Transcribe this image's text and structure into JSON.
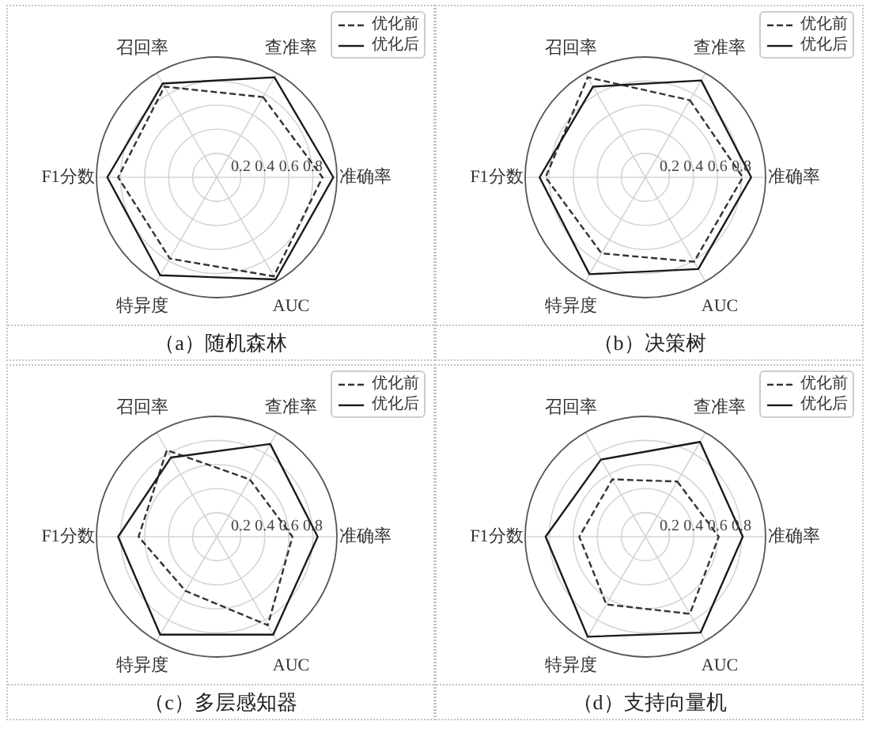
{
  "chart_data": [
    {
      "type": "radar",
      "title": "（a）随机森林",
      "categories": [
        "查准率",
        "准确率",
        "AUC",
        "特异度",
        "F1分数",
        "召回率"
      ],
      "series": [
        {
          "name": "优化前",
          "color": "#333333",
          "line_style": "dashed",
          "values": [
            0.77,
            0.88,
            0.95,
            0.78,
            0.82,
            0.87
          ]
        },
        {
          "name": "优化后",
          "color": "#1a1a1a",
          "line_style": "solid",
          "values": [
            0.96,
            0.97,
            0.98,
            0.94,
            0.91,
            0.9
          ]
        }
      ],
      "ylim": [
        0,
        1
      ],
      "yticks": [
        0.2,
        0.4,
        0.6,
        0.8
      ],
      "grid": true,
      "legend": "top right"
    },
    {
      "type": "radar",
      "title": "（b）决策树",
      "categories": [
        "查准率",
        "准确率",
        "AUC",
        "特异度",
        "F1分数",
        "召回率"
      ],
      "series": [
        {
          "name": "优化前",
          "color": "#333333",
          "line_style": "dashed",
          "values": [
            0.74,
            0.81,
            0.81,
            0.73,
            0.83,
            0.96
          ]
        },
        {
          "name": "优化后",
          "color": "#1a1a1a",
          "line_style": "solid",
          "values": [
            0.93,
            0.88,
            0.88,
            0.93,
            0.88,
            0.87
          ]
        }
      ],
      "ylim": [
        0,
        1
      ],
      "yticks": [
        0.2,
        0.4,
        0.6,
        0.8
      ],
      "grid": true,
      "legend": "top right"
    },
    {
      "type": "radar",
      "title": "（c）多层感知器",
      "categories": [
        "查准率",
        "准确率",
        "AUC",
        "特异度",
        "F1分数",
        "召回率"
      ],
      "series": [
        {
          "name": "优化前",
          "color": "#333333",
          "line_style": "dashed",
          "values": [
            0.55,
            0.63,
            0.85,
            0.52,
            0.65,
            0.83
          ]
        },
        {
          "name": "优化后",
          "color": "#1a1a1a",
          "line_style": "solid",
          "values": [
            0.89,
            0.84,
            0.94,
            0.94,
            0.82,
            0.76
          ]
        }
      ],
      "ylim": [
        0,
        1
      ],
      "yticks": [
        0.2,
        0.4,
        0.6,
        0.8
      ],
      "grid": true,
      "legend": "top right"
    },
    {
      "type": "radar",
      "title": "（d）支持向量机",
      "categories": [
        "查准率",
        "准确率",
        "AUC",
        "特异度",
        "F1分数",
        "召回率"
      ],
      "series": [
        {
          "name": "优化前",
          "color": "#333333",
          "line_style": "dashed",
          "values": [
            0.53,
            0.61,
            0.74,
            0.65,
            0.55,
            0.55
          ]
        },
        {
          "name": "优化后",
          "color": "#1a1a1a",
          "line_style": "solid",
          "values": [
            0.91,
            0.81,
            0.92,
            0.96,
            0.83,
            0.74
          ]
        }
      ],
      "ylim": [
        0,
        1
      ],
      "yticks": [
        0.2,
        0.4,
        0.6,
        0.8
      ],
      "grid": true,
      "legend": "top right"
    }
  ]
}
